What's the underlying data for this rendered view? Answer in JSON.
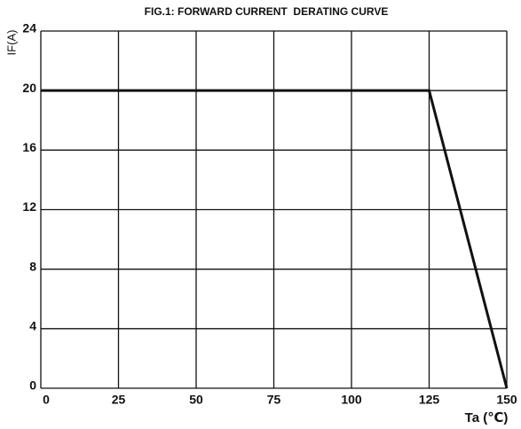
{
  "chart_data": {
    "type": "line",
    "title": "FIG.1: FORWARD CURRENT  DERATING CURVE",
    "x_label": "Ta (℃)",
    "y_label": "IF(A)",
    "x": [
      0,
      125,
      150
    ],
    "series": [
      {
        "color": "#111111",
        "values": [
          20,
          20,
          0
        ]
      }
    ],
    "xlim": [
      0,
      150
    ],
    "xticks": [
      0,
      25,
      50,
      75,
      100,
      125,
      150
    ],
    "ylim": [
      0,
      24
    ],
    "yticks": [
      0,
      4,
      8,
      12,
      16,
      20,
      24
    ],
    "grid": true
  }
}
